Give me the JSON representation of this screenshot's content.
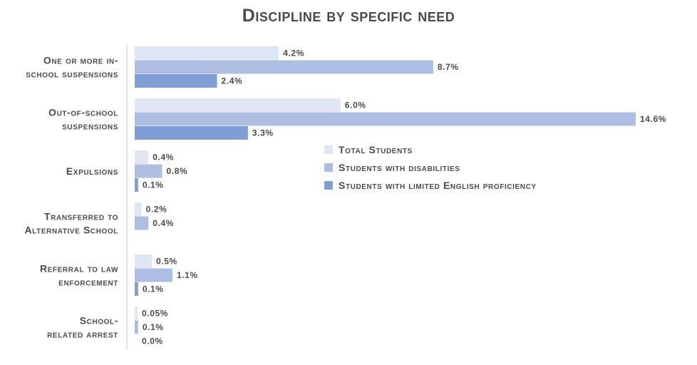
{
  "chart_data": {
    "type": "bar",
    "orientation": "horizontal",
    "title": "Discipline by specific need",
    "categories": [
      [
        "One or more in-",
        "school suspensions"
      ],
      [
        "Out-of-school",
        "suspensions"
      ],
      [
        "Expulsions"
      ],
      [
        "Transferred to",
        "Alternative School"
      ],
      [
        "Referral to law",
        "enforcement"
      ],
      [
        "School-",
        "related arrest"
      ]
    ],
    "series": [
      {
        "name": "Total Students",
        "color": "#dfe5f2",
        "values": [
          4.2,
          6.0,
          0.4,
          0.2,
          0.5,
          0.05
        ],
        "labels": [
          "4.2%",
          "6.0%",
          "0.4%",
          "0.2%",
          "0.5%",
          "0.05%"
        ]
      },
      {
        "name": "Students with disabilities",
        "color": "#aebde2",
        "values": [
          8.7,
          14.6,
          0.8,
          0.4,
          1.1,
          0.1
        ],
        "labels": [
          "8.7%",
          "14.6%",
          "0.8%",
          "0.4%",
          "1.1%",
          "0.1%"
        ]
      },
      {
        "name": "Students with limited English proficiency",
        "color": "#7f9ed6",
        "values": [
          2.4,
          3.3,
          0.1,
          null,
          0.1,
          0.0
        ],
        "labels": [
          "2.4%",
          "3.3%",
          "0.1%",
          null,
          "0.1%",
          "0.0%"
        ]
      }
    ],
    "xlim": [
      0,
      14.6
    ],
    "grid": false,
    "legend_position": "right-middle"
  }
}
